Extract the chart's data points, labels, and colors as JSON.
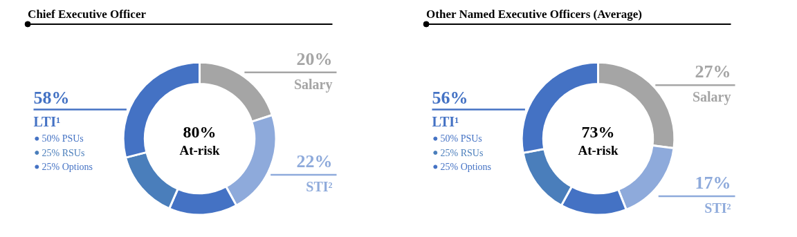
{
  "chart_data": [
    {
      "type": "donut",
      "title": "Chief Executive Officer",
      "categories": [
        "Salary",
        "STI²",
        "25% Options",
        "25% RSUs",
        "50% PSUs"
      ],
      "values": [
        20,
        22,
        14.5,
        14.5,
        29
      ],
      "value_labels": [
        "20%",
        "22%",
        null,
        null,
        null
      ],
      "colors": [
        "#a5a5a5",
        "#8eaadb",
        "#4472c4",
        "#4a7ebb",
        "#4472c4"
      ],
      "annotations": [
        "58%",
        "LTI¹",
        "80%",
        "At-risk"
      ],
      "legend": "left"
    },
    {
      "type": "donut",
      "title": "Other Named Executive Officers (Average)",
      "categories": [
        "Salary",
        "STI²",
        "25% Options",
        "25% RSUs",
        "50% PSUs"
      ],
      "values": [
        27,
        17,
        14,
        14,
        28
      ],
      "value_labels": [
        "27%",
        "17%",
        null,
        null,
        null
      ],
      "colors": [
        "#a5a5a5",
        "#8eaadb",
        "#4472c4",
        "#4a7ebb",
        "#4472c4"
      ],
      "annotations": [
        "56%",
        "LTI¹",
        "73%",
        "At-risk"
      ],
      "legend": "left"
    }
  ]
}
